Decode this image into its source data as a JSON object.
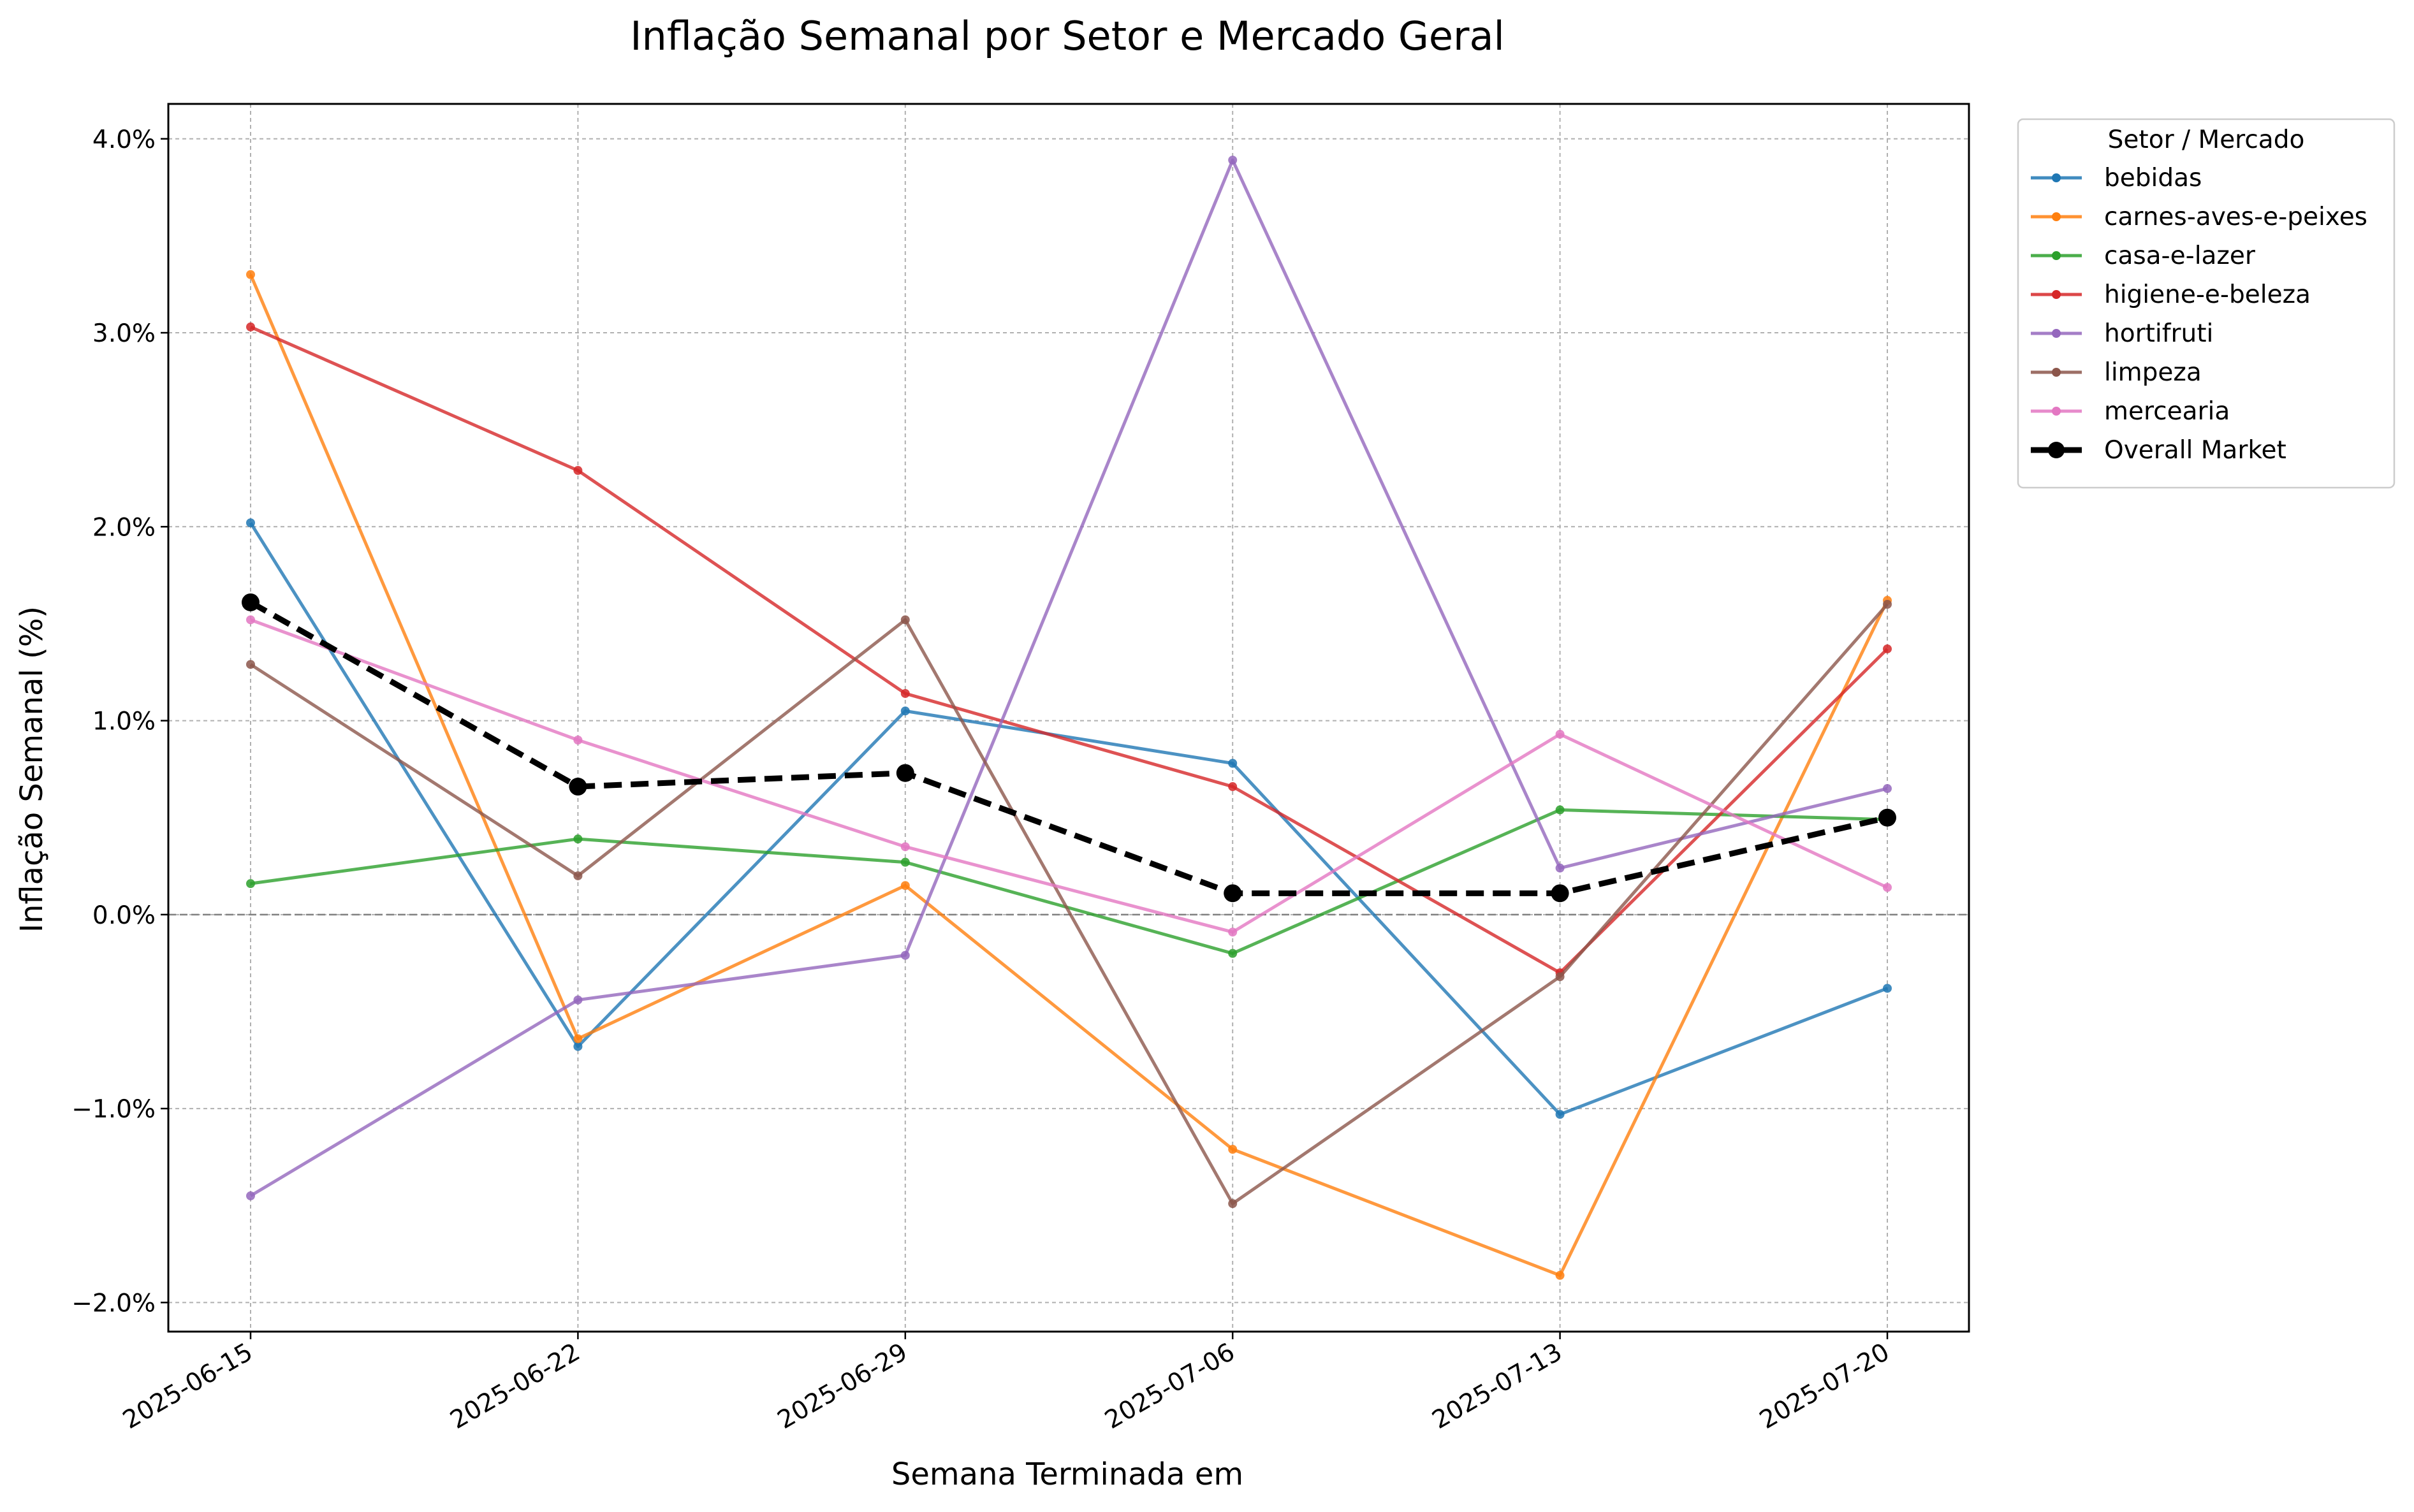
{
  "chart_data": {
    "type": "line",
    "title": "Inflação Semanal por Setor e Mercado Geral",
    "xlabel": "Semana Terminada em",
    "ylabel": "Inflação Semanal (%)",
    "x": [
      "2025-06-15",
      "2025-06-22",
      "2025-06-29",
      "2025-07-06",
      "2025-07-13",
      "2025-07-20"
    ],
    "ylim": [
      -2.15,
      4.18
    ],
    "yticks": [
      -2.0,
      -1.0,
      0.0,
      1.0,
      2.0,
      3.0,
      4.0
    ],
    "ytick_labels": [
      "−2.0%",
      "−1.0%",
      "0.0%",
      "1.0%",
      "2.0%",
      "3.0%",
      "4.0%"
    ],
    "grid": true,
    "zero_line": true,
    "legend_title": "Setor / Mercado",
    "legend_position": "outside upper right",
    "series": [
      {
        "name": "bebidas",
        "color": "#1f77b4",
        "values": [
          2.02,
          -0.68,
          1.05,
          0.78,
          -1.03,
          -0.38
        ]
      },
      {
        "name": "carnes-aves-e-peixes",
        "color": "#ff7f0e",
        "values": [
          3.3,
          -0.64,
          0.15,
          -1.21,
          -1.86,
          1.62
        ]
      },
      {
        "name": "casa-e-lazer",
        "color": "#2ca02c",
        "values": [
          0.16,
          0.39,
          0.27,
          -0.2,
          0.54,
          0.49
        ]
      },
      {
        "name": "higiene-e-beleza",
        "color": "#d62728",
        "values": [
          3.03,
          2.29,
          1.14,
          0.66,
          -0.3,
          1.37
        ]
      },
      {
        "name": "hortifruti",
        "color": "#9467bd",
        "values": [
          -1.45,
          -0.44,
          -0.21,
          3.89,
          0.24,
          0.65
        ]
      },
      {
        "name": "limpeza",
        "color": "#8c564b",
        "values": [
          1.29,
          0.2,
          1.52,
          -1.49,
          -0.32,
          1.6
        ]
      },
      {
        "name": "mercearia",
        "color": "#e377c2",
        "values": [
          1.52,
          0.9,
          0.35,
          -0.09,
          0.93,
          0.14
        ]
      },
      {
        "name": "Overall Market",
        "color": "#000000",
        "values": [
          1.61,
          0.66,
          0.73,
          0.11,
          0.11,
          0.5
        ],
        "style": "dashed"
      }
    ]
  }
}
